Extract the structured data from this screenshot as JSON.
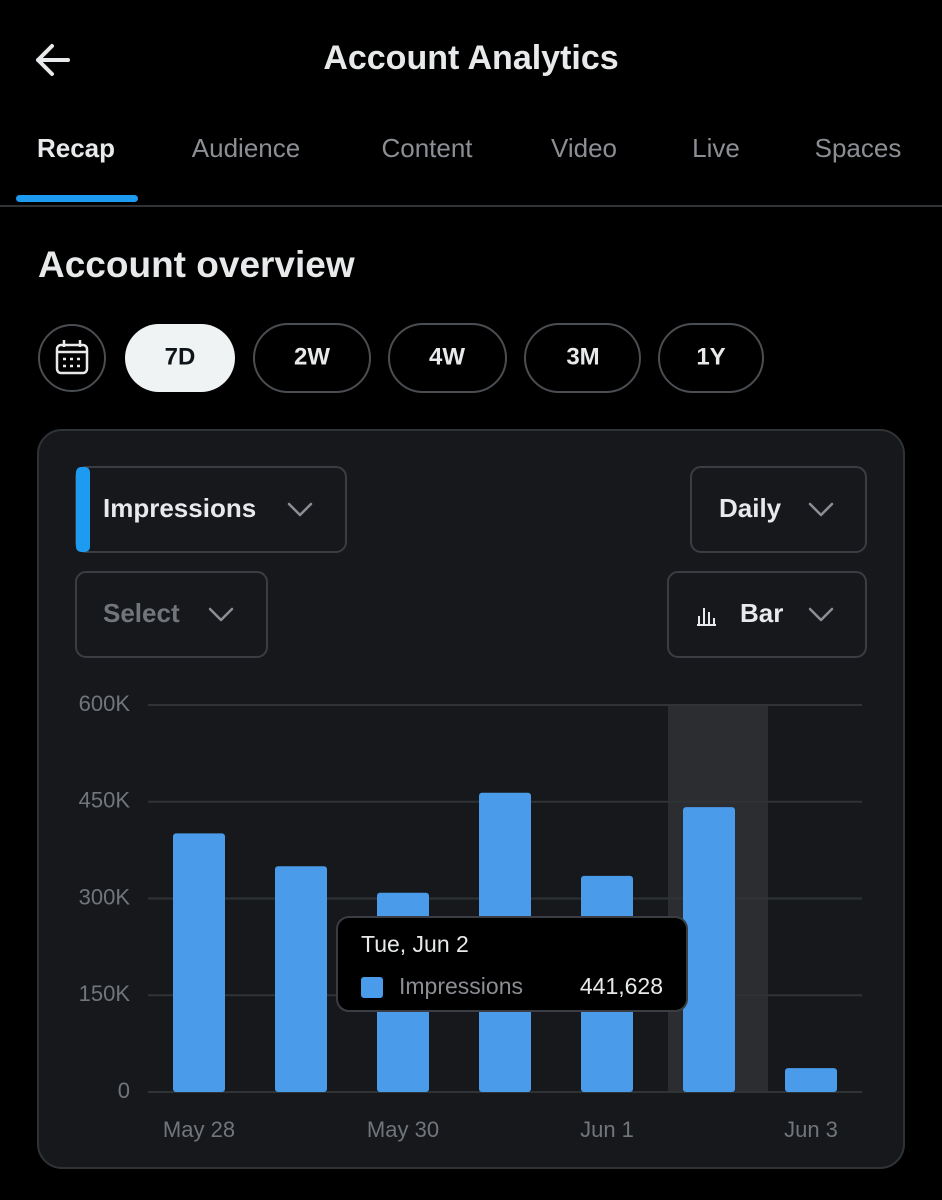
{
  "header": {
    "title": "Account Analytics"
  },
  "tabs": [
    "Recap",
    "Audience",
    "Content",
    "Video",
    "Live",
    "Spaces"
  ],
  "section_title": "Account overview",
  "ranges": [
    "7D",
    "2W",
    "4W",
    "3M",
    "1Y"
  ],
  "controls": {
    "metric": "Impressions",
    "interval": "Daily",
    "compare": "Select",
    "chart_style": "Bar"
  },
  "chart_data": {
    "type": "bar",
    "categories": [
      "May 28",
      null,
      "May 30",
      null,
      "Jun 1",
      null,
      "Jun 3"
    ],
    "series": [
      {
        "name": "Impressions",
        "color": "#4a9bea",
        "values": [
          401000,
          350000,
          309000,
          464000,
          335000,
          441628,
          37000
        ],
        "value_labels": [
          null,
          null,
          null,
          null,
          null,
          "441,628",
          null
        ]
      }
    ],
    "tooltip_title": "Tue, Jun 2",
    "ylim": [
      0,
      600000
    ],
    "yticks": [
      0,
      {
        "value": 150000,
        "label": "150K"
      },
      {
        "value": 300000,
        "label": "300K"
      },
      {
        "value": 450000,
        "label": "450K"
      },
      {
        "value": 600000,
        "label": "600K"
      }
    ],
    "grid": true
  }
}
